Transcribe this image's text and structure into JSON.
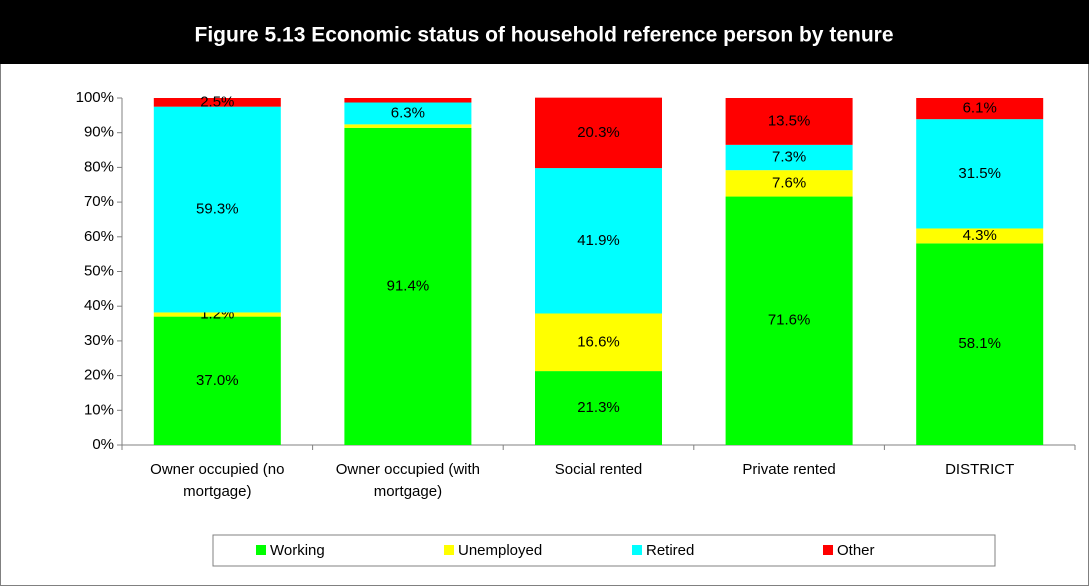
{
  "chart_data": {
    "type": "stacked_bar",
    "title": "Figure 5.13 Economic status of household reference person by tenure",
    "categories": [
      "Owner occupied (no mortgage)",
      "Owner occupied (with mortgage)",
      "Social rented",
      "Private rented",
      "DISTRICT"
    ],
    "series": [
      {
        "name": "Working",
        "color": "#00ff00",
        "values": [
          37.0,
          91.4,
          21.3,
          71.6,
          58.1
        ],
        "value_labels": [
          "37.0%",
          "91.4%",
          "21.3%",
          "71.6%",
          "58.1%"
        ]
      },
      {
        "name": "Unemployed",
        "color": "#ffff00",
        "values": [
          1.2,
          1.0,
          16.6,
          7.6,
          4.3
        ],
        "value_labels": [
          "1.2%",
          null,
          "16.6%",
          "7.6%",
          "4.3%"
        ]
      },
      {
        "name": "Retired",
        "color": "#00ffff",
        "values": [
          59.3,
          6.3,
          41.9,
          7.3,
          31.5
        ],
        "value_labels": [
          "59.3%",
          "6.3%",
          "41.9%",
          "7.3%",
          "31.5%"
        ]
      },
      {
        "name": "Other",
        "color": "#ff0000",
        "values": [
          2.5,
          1.3,
          20.3,
          13.5,
          6.1
        ],
        "value_labels": [
          "2.5%",
          null,
          "20.3%",
          "13.5%",
          "6.1%"
        ]
      }
    ],
    "ylim": [
      0,
      100
    ],
    "yticks": [
      {
        "value": 0,
        "label": "0%"
      },
      {
        "value": 10,
        "label": "10%"
      },
      {
        "value": 20,
        "label": "20%"
      },
      {
        "value": 30,
        "label": "30%"
      },
      {
        "value": 40,
        "label": "40%"
      },
      {
        "value": 50,
        "label": "50%"
      },
      {
        "value": 60,
        "label": "60%"
      },
      {
        "value": 70,
        "label": "70%"
      },
      {
        "value": 80,
        "label": "80%"
      },
      {
        "value": 90,
        "label": "90%"
      },
      {
        "value": 100,
        "label": "100%"
      }
    ],
    "legend": "bottom"
  }
}
